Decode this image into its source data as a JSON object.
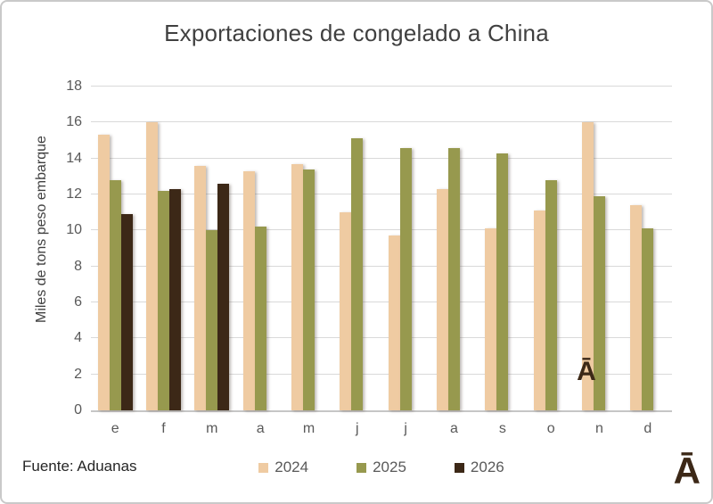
{
  "window": {
    "background": "#ffffff",
    "border_color": "#c9c9c9"
  },
  "chart_data": {
    "type": "bar",
    "title": "Exportaciones de congelado a China",
    "xlabel": "",
    "ylabel": "Miles de tons peso embarque",
    "ylim": [
      0,
      18
    ],
    "yticks": [
      0,
      2,
      4,
      6,
      8,
      10,
      12,
      14,
      16,
      18
    ],
    "grid": true,
    "legend_position": "bottom-center",
    "categories": [
      "e",
      "f",
      "m",
      "a",
      "m",
      "j",
      "j",
      "a",
      "s",
      "o",
      "n",
      "d"
    ],
    "series": [
      {
        "name": "2024",
        "color": "#EFCBA2",
        "values": [
          15.3,
          16.0,
          13.6,
          13.3,
          13.7,
          11.0,
          9.7,
          12.3,
          10.1,
          11.1,
          16.0,
          11.4
        ]
      },
      {
        "name": "2025",
        "color": "#97994E",
        "values": [
          12.8,
          12.2,
          10.0,
          10.2,
          13.4,
          15.1,
          14.6,
          14.6,
          14.3,
          12.8,
          11.9,
          10.1
        ]
      },
      {
        "name": "2026",
        "color": "#3C2817",
        "values": [
          10.9,
          12.3,
          12.6,
          null,
          null,
          null,
          null,
          null,
          null,
          null,
          null,
          null
        ]
      }
    ]
  },
  "source_note": "Fuente: Aduanas",
  "annotations": {
    "november_overlay_glyph": "Ā",
    "bottom_right_glyph": "Ā",
    "glyph_color": "#3C2817"
  },
  "colors": {
    "gridline": "#d9d9d9",
    "axis_line": "#c6c6c6",
    "tick_text": "#595959",
    "title_text": "#404040"
  }
}
